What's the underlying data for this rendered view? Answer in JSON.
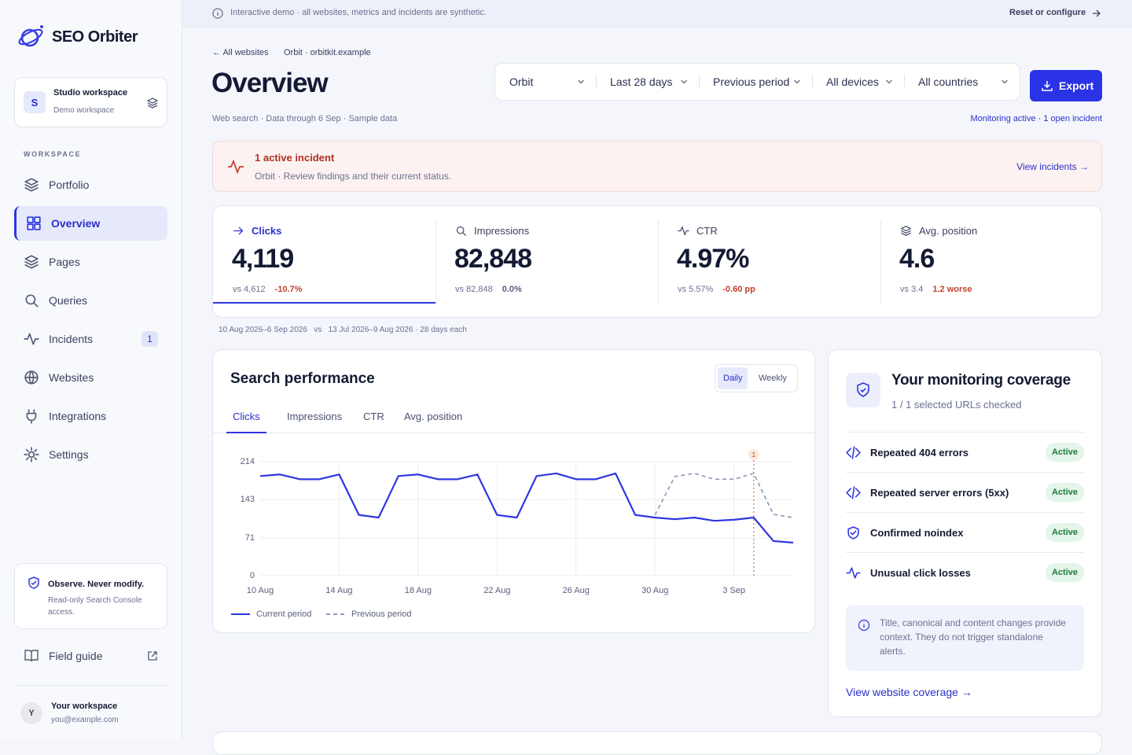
{
  "banner": {
    "text": "Interactive demo · all websites, metrics and incidents are synthetic.",
    "action": "Reset or configure"
  },
  "sidebar": {
    "brand": "SEO Orbiter",
    "workspace": {
      "initial": "S",
      "name": "Studio workspace",
      "subtitle": "Demo workspace"
    },
    "section_label": "WORKSPACE",
    "nav": [
      {
        "label": "Portfolio"
      },
      {
        "label": "Overview",
        "active": true
      },
      {
        "label": "Pages"
      },
      {
        "label": "Queries"
      },
      {
        "label": "Incidents",
        "badge": 1
      },
      {
        "label": "Websites"
      },
      {
        "label": "Integrations"
      },
      {
        "label": "Settings"
      }
    ],
    "notice": {
      "title": "Observe. Never modify.",
      "text": "Read-only Search Console access."
    },
    "field_guide": "Field guide",
    "user": {
      "initial": "Y",
      "name": "Your workspace",
      "email": "you@example.com"
    }
  },
  "header": {
    "back": "All websites",
    "site": "Orbit · orbitkit.example",
    "title": "Overview",
    "subtitle": "Web search · Data through 6 Sep · Sample data",
    "filters": [
      "Orbit",
      "Last 28 days",
      "Previous period",
      "All devices",
      "All countries"
    ],
    "export": "Export",
    "status": "Monitoring active · 1 open incident"
  },
  "incident": {
    "title": "1 active incident",
    "text": "Orbit · Review findings and their current status.",
    "action": "View incidents →"
  },
  "kpis": [
    {
      "label": "Clicks",
      "value": "4,119",
      "compare": "vs 4,612",
      "delta": "-10.7%",
      "tone": "negative",
      "active": true
    },
    {
      "label": "Impressions",
      "value": "82,848",
      "compare": "vs 82,848",
      "delta": "0.0%",
      "tone": "neutral"
    },
    {
      "label": "CTR",
      "value": "4.97%",
      "compare": "vs 5.57%",
      "delta": "-0.60 pp",
      "tone": "negative"
    },
    {
      "label": "Avg. position",
      "value": "4.6",
      "compare": "vs 3.4",
      "delta": "1.2 worse",
      "tone": "negative"
    }
  ],
  "period_note": "10 Aug 2026–6 Sep 2026   vs   13 Jul 2026–9 Aug 2026 · 28 days each",
  "performance": {
    "title": "Search performance",
    "toggle": [
      {
        "label": "Daily",
        "active": true
      },
      {
        "label": "Weekly"
      }
    ],
    "tabs": [
      {
        "label": "Clicks",
        "active": true
      },
      {
        "label": "Impressions"
      },
      {
        "label": "CTR"
      },
      {
        "label": "Avg. position"
      }
    ]
  },
  "chart_data": {
    "type": "line",
    "categories": [
      "10 Aug",
      null,
      null,
      null,
      "14 Aug",
      null,
      null,
      null,
      "18 Aug",
      null,
      null,
      null,
      "22 Aug",
      null,
      null,
      null,
      "26 Aug",
      null,
      null,
      null,
      "30 Aug",
      null,
      null,
      null,
      "3 Sep",
      null,
      null,
      null
    ],
    "series": [
      {
        "name": "Current period",
        "color": "#2f36e0",
        "dashed": false,
        "values": [
          187,
          190,
          181,
          181,
          190,
          114,
          109,
          187,
          190,
          181,
          181,
          190,
          114,
          109,
          187,
          192,
          181,
          181,
          192,
          114,
          109,
          106,
          109,
          103,
          105,
          109,
          65,
          62
        ]
      },
      {
        "name": "Previous period",
        "color": "#8f95b8",
        "dashed": true,
        "values": [
          null,
          null,
          null,
          null,
          null,
          null,
          null,
          null,
          null,
          null,
          null,
          null,
          null,
          null,
          null,
          null,
          null,
          null,
          null,
          null,
          114,
          186,
          192,
          181,
          181,
          192,
          115,
          109
        ]
      }
    ],
    "ylim": [
      0,
      214
    ],
    "yticks": [
      0,
      71,
      143,
      214
    ],
    "grid": true,
    "markers": [
      {
        "index": 25,
        "label": "1"
      }
    ]
  },
  "coverage": {
    "title": "Your monitoring coverage",
    "subtitle": "1 / 1 selected URLs checked",
    "rules": [
      {
        "name": "Repeated 404 errors",
        "status": "Active"
      },
      {
        "name": "Repeated server errors (5xx)",
        "status": "Active"
      },
      {
        "name": "Confirmed noindex",
        "status": "Active"
      },
      {
        "name": "Unusual click losses",
        "status": "Active"
      }
    ],
    "note": "Title, canonical and content changes provide context. They do not trigger standalone alerts.",
    "link": "View website coverage →"
  }
}
